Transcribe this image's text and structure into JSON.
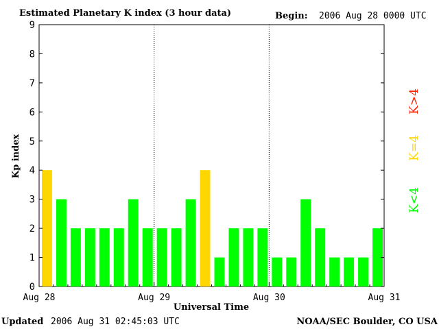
{
  "header": {
    "title": "Estimated Planetary K index (3 hour data)",
    "begin_label": "Begin:",
    "begin_value": "2006 Aug 28 0000 UTC"
  },
  "footer": {
    "updated_label": "Updated",
    "updated_value": "2006 Aug 31 02:45:03 UTC",
    "source": "NOAA/SEC Boulder, CO USA"
  },
  "legend": {
    "low": "K<4",
    "mid": "K=4",
    "high": "K>4"
  },
  "colors": {
    "low": "#00ff00",
    "mid": "#ffd700",
    "high": "#ff2200",
    "axis": "#000000",
    "background": "#ffffff"
  },
  "chart_data": {
    "type": "bar",
    "xlabel": "Universal Time",
    "ylabel": "Kp index",
    "ylim": [
      0,
      9
    ],
    "yticks": [
      "0",
      "1",
      "2",
      "3",
      "4",
      "5",
      "6",
      "7",
      "8",
      "9"
    ],
    "day_labels": [
      "Aug 28",
      "Aug 29",
      "Aug 30",
      "Aug 31"
    ],
    "interval_hours": 3,
    "values": [
      4,
      3,
      2,
      2,
      2,
      2,
      3,
      2,
      2,
      2,
      3,
      4,
      1,
      2,
      2,
      2,
      1,
      1,
      3,
      2,
      1,
      1,
      1,
      2
    ],
    "grid": "dotted vertical lines at day boundaries"
  }
}
